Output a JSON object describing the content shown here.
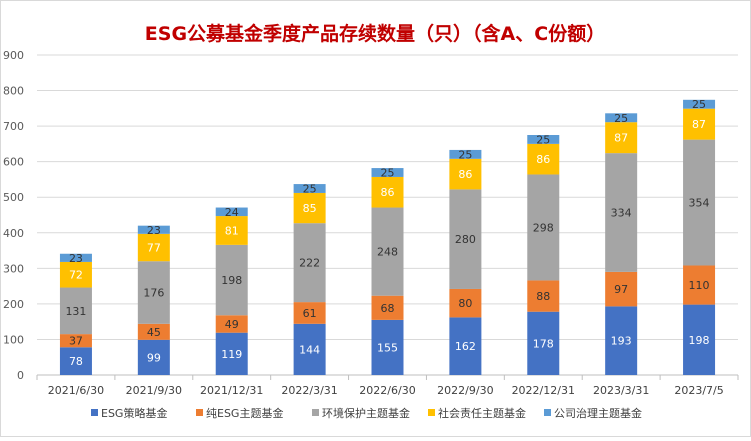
{
  "chart_data": {
    "type": "bar",
    "stacked": true,
    "title": "ESG公募基金季度产品存续数量（只）（含A、C份额）",
    "categories": [
      "2021/6/30",
      "2021/9/30",
      "2021/12/31",
      "2022/3/31",
      "2022/6/30",
      "2022/9/30",
      "2022/12/31",
      "2023/3/31",
      "2023/7/5"
    ],
    "series": [
      {
        "name": "ESG策略基金",
        "color": "#4472C4",
        "label_color": "#ffffff",
        "values": [
          78,
          99,
          119,
          144,
          155,
          162,
          178,
          193,
          198
        ]
      },
      {
        "name": "纯ESG主题基金",
        "color": "#ED7D31",
        "label_color": "#333333",
        "values": [
          37,
          45,
          49,
          61,
          68,
          80,
          88,
          97,
          110
        ]
      },
      {
        "name": "环境保护主题基金",
        "color": "#A5A5A5",
        "label_color": "#333333",
        "values": [
          131,
          176,
          198,
          222,
          248,
          280,
          298,
          334,
          354
        ]
      },
      {
        "name": "社会责任主题基金",
        "color": "#FFC000",
        "label_color": "#ffffff",
        "values": [
          72,
          77,
          81,
          85,
          86,
          86,
          86,
          87,
          87
        ]
      },
      {
        "name": "公司治理主题基金",
        "color": "#5B9BD5",
        "label_color": "#333333",
        "values": [
          23,
          23,
          24,
          25,
          25,
          25,
          25,
          25,
          25
        ]
      }
    ],
    "ylim": [
      0,
      900
    ],
    "yticks": [
      0,
      100,
      200,
      300,
      400,
      500,
      600,
      700,
      800,
      900
    ],
    "xlabel": "",
    "ylabel": "",
    "grid": true,
    "legend": "bottom",
    "title_color": "#C00000"
  }
}
